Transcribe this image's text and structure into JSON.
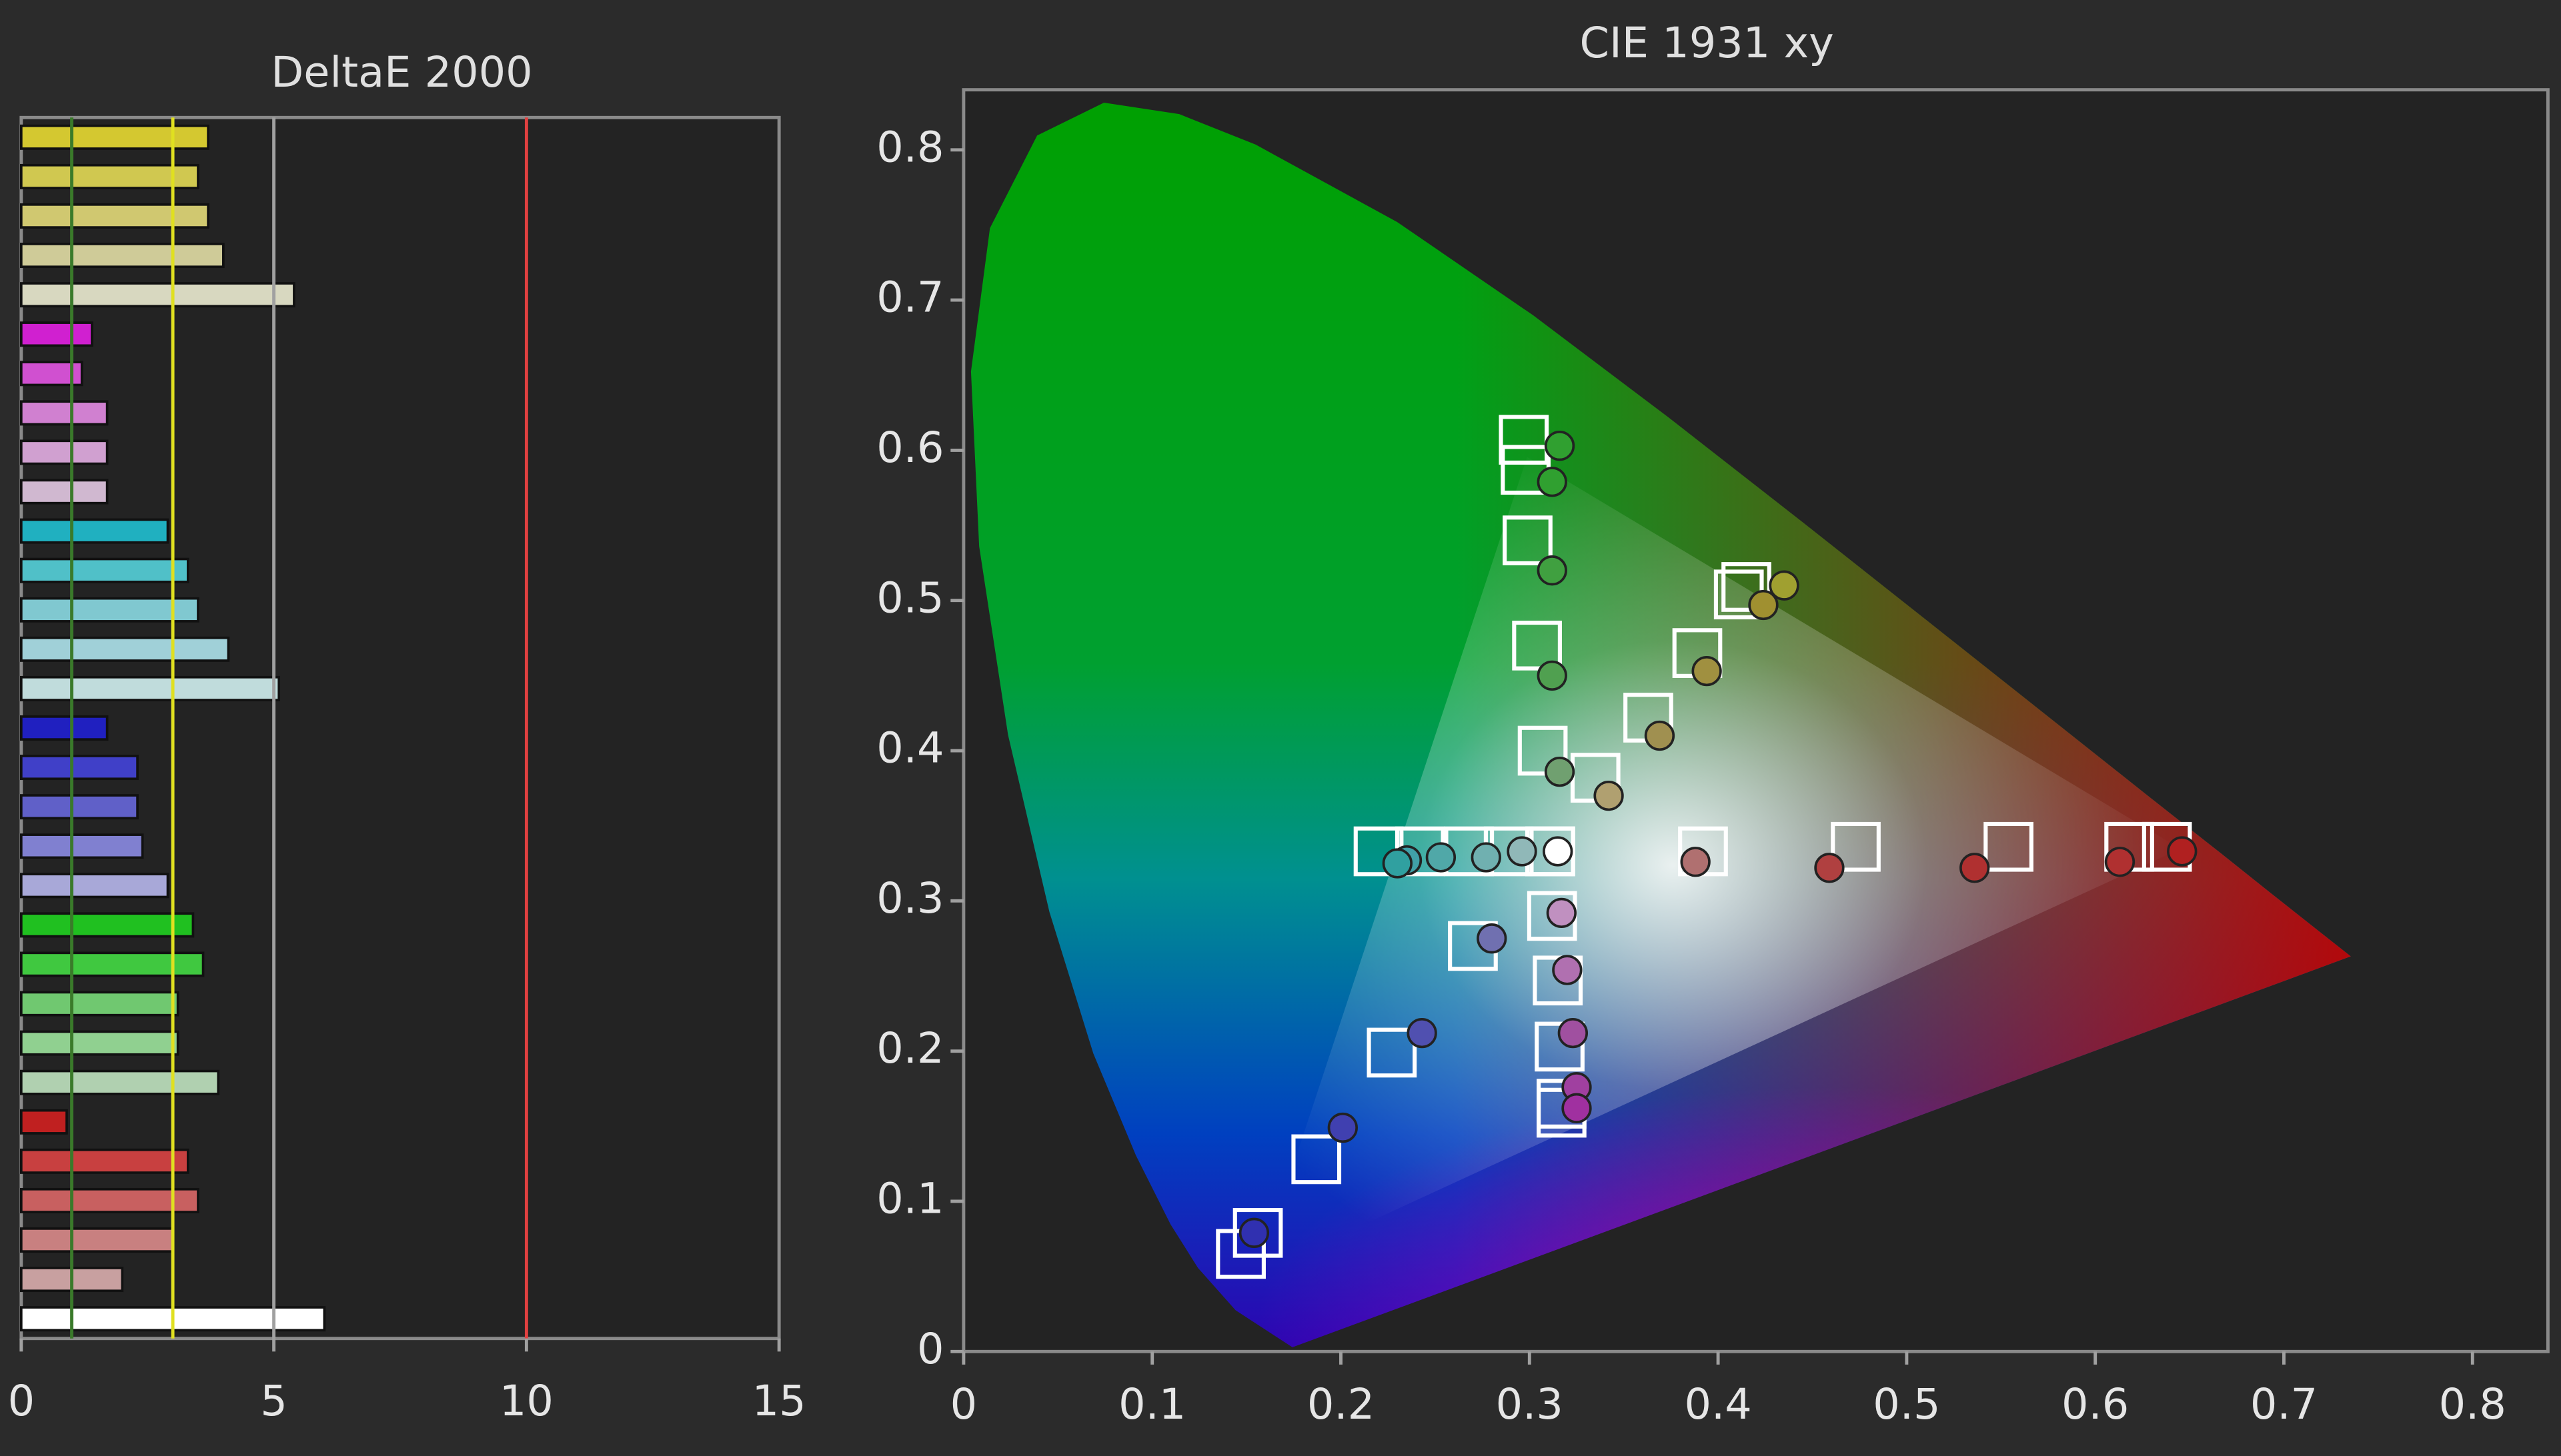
{
  "chart_data": [
    {
      "type": "bar",
      "orientation": "horizontal",
      "title": "DeltaE 2000",
      "categories": [
        null,
        null,
        null,
        null,
        null,
        null,
        null,
        null,
        null,
        null,
        null,
        null,
        null,
        null,
        null,
        null,
        null,
        null,
        null,
        null,
        null,
        null,
        null,
        null,
        null,
        null,
        null,
        null,
        null,
        null,
        null
      ],
      "values": [
        3.7,
        3.5,
        3.7,
        4.0,
        5.4,
        1.4,
        1.2,
        1.7,
        1.7,
        1.7,
        2.9,
        3.3,
        3.5,
        4.1,
        5.1,
        1.7,
        2.3,
        2.3,
        2.4,
        2.9,
        3.4,
        3.6,
        3.1,
        3.1,
        3.9,
        0.9,
        3.3,
        3.5,
        3.0,
        2.0,
        6.0
      ],
      "colors": [
        "#d4c830",
        "#d0c850",
        "#d0c870",
        "#cfcb98",
        "#d8d8c0",
        "#d020d0",
        "#d050d0",
        "#d080d0",
        "#d0a0d0",
        "#d0b8d0",
        "#20b0c0",
        "#50c0c8",
        "#80c8d0",
        "#a0d0d8",
        "#c0dcdc",
        "#2020c0",
        "#4040c8",
        "#6060c8",
        "#8080d0",
        "#a8a8d8",
        "#20c020",
        "#40c840",
        "#70c870",
        "#90d090",
        "#b0d0b0",
        "#c02020",
        "#c84040",
        "#c86060",
        "#c88080",
        "#c8a0a0",
        "#ffffff"
      ],
      "xlim": [
        0,
        15
      ],
      "xticks": [
        0,
        5,
        10,
        15
      ],
      "reference_lines": [
        {
          "value": 1,
          "color": "#3a7a2a"
        },
        {
          "value": 3,
          "color": "#e0e020"
        },
        {
          "value": 5,
          "color": "#a0a0a0"
        },
        {
          "value": 10,
          "color": "#e04040"
        }
      ]
    },
    {
      "type": "scatter",
      "title": "CIE 1931 xy",
      "xlim": [
        0,
        0.84
      ],
      "ylim": [
        0,
        0.84
      ],
      "xticks": [
        0,
        0.1,
        0.2,
        0.3,
        0.4,
        0.5,
        0.6,
        0.7,
        0.8
      ],
      "yticks": [
        0,
        0.1,
        0.2,
        0.3,
        0.4,
        0.5,
        0.6,
        0.7,
        0.8
      ],
      "series": [
        {
          "marker": "square",
          "color": "#ffffff",
          "x": [
            0.311,
            0.335,
            0.363,
            0.389,
            0.411,
            0.415,
            0.307,
            0.304,
            0.299,
            0.298,
            0.297,
            0.392,
            0.473,
            0.554,
            0.618,
            0.638,
            0.311,
            0.289,
            0.268,
            0.242,
            0.22,
            0.27,
            0.227,
            0.187,
            0.156,
            0.147,
            0.312,
            0.315,
            0.316,
            0.317,
            0.317
          ],
          "y": [
            0.333,
            0.382,
            0.422,
            0.465,
            0.504,
            0.509,
            0.4,
            0.47,
            0.54,
            0.587,
            0.607,
            0.333,
            0.336,
            0.336,
            0.336,
            0.336,
            0.333,
            0.333,
            0.333,
            0.333,
            0.333,
            0.27,
            0.199,
            0.128,
            0.079,
            0.065,
            0.29,
            0.247,
            0.203,
            0.165,
            0.159
          ]
        },
        {
          "marker": "circle",
          "x": [
            0.315,
            0.342,
            0.369,
            0.394,
            0.424,
            0.435,
            0.316,
            0.312,
            0.312,
            0.312,
            0.316,
            0.388,
            0.459,
            0.536,
            0.613,
            0.646,
            0.296,
            0.277,
            0.253,
            0.235,
            0.23,
            0.28,
            0.243,
            0.201,
            0.154,
            0.317,
            0.32,
            0.323,
            0.325,
            0.325
          ],
          "y": [
            0.333,
            0.37,
            0.41,
            0.453,
            0.497,
            0.51,
            0.386,
            0.45,
            0.52,
            0.579,
            0.603,
            0.326,
            0.322,
            0.322,
            0.326,
            0.333,
            0.333,
            0.329,
            0.329,
            0.327,
            0.325,
            0.275,
            0.212,
            0.149,
            0.079,
            0.292,
            0.254,
            0.212,
            0.176,
            0.162
          ],
          "colors": [
            "#ffffff",
            "#b0a070",
            "#a09050",
            "#a09040",
            "#a09030",
            "#a0a030",
            "#70a070",
            "#50a050",
            "#40a040",
            "#30a030",
            "#30a030",
            "#b07070",
            "#b04040",
            "#b03030",
            "#b03030",
            "#b02020",
            "#90b8b8",
            "#70b0b0",
            "#50a8a8",
            "#40a0a8",
            "#30a0a0",
            "#7070b0",
            "#5050b0",
            "#4040b0",
            "#3030b0",
            "#c090c0",
            "#b070b0",
            "#a050a0",
            "#a040a0",
            "#a030a0"
          ]
        }
      ]
    }
  ]
}
